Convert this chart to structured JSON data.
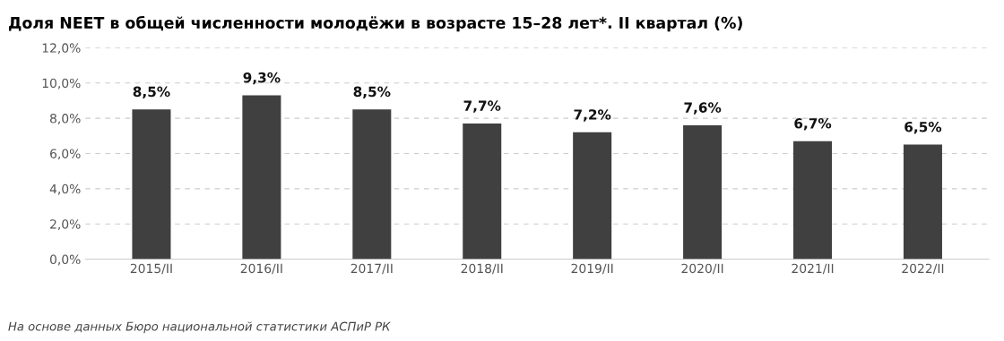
{
  "chart_data": {
    "type": "bar",
    "title": "Доля NEET в общей численности молодёжи в возрасте 15–28 лет*. II квартал (%)",
    "categories": [
      "2015/II",
      "2016/II",
      "2017/II",
      "2018/II",
      "2019/II",
      "2020/II",
      "2021/II",
      "2022/II"
    ],
    "values": [
      8.5,
      9.3,
      8.5,
      7.7,
      7.2,
      7.6,
      6.7,
      6.5
    ],
    "value_labels": [
      "8,5%",
      "9,3%",
      "8,5%",
      "7,7%",
      "7,2%",
      "7,6%",
      "6,7%",
      "6,5%"
    ],
    "color": "#404040",
    "ylim": [
      0,
      12
    ],
    "yticks": [
      {
        "value": 0,
        "label": "0,0%"
      },
      {
        "value": 2,
        "label": "2,0%"
      },
      {
        "value": 4,
        "label": "4,0%"
      },
      {
        "value": 6,
        "label": "6,0%"
      },
      {
        "value": 8,
        "label": "8,0%"
      },
      {
        "value": 10,
        "label": "10,0%"
      },
      {
        "value": 12,
        "label": "12,0%"
      }
    ],
    "grid": "y",
    "annotations": [
      "На основе данных Бюро национальной статистики АСПиР РК"
    ]
  }
}
